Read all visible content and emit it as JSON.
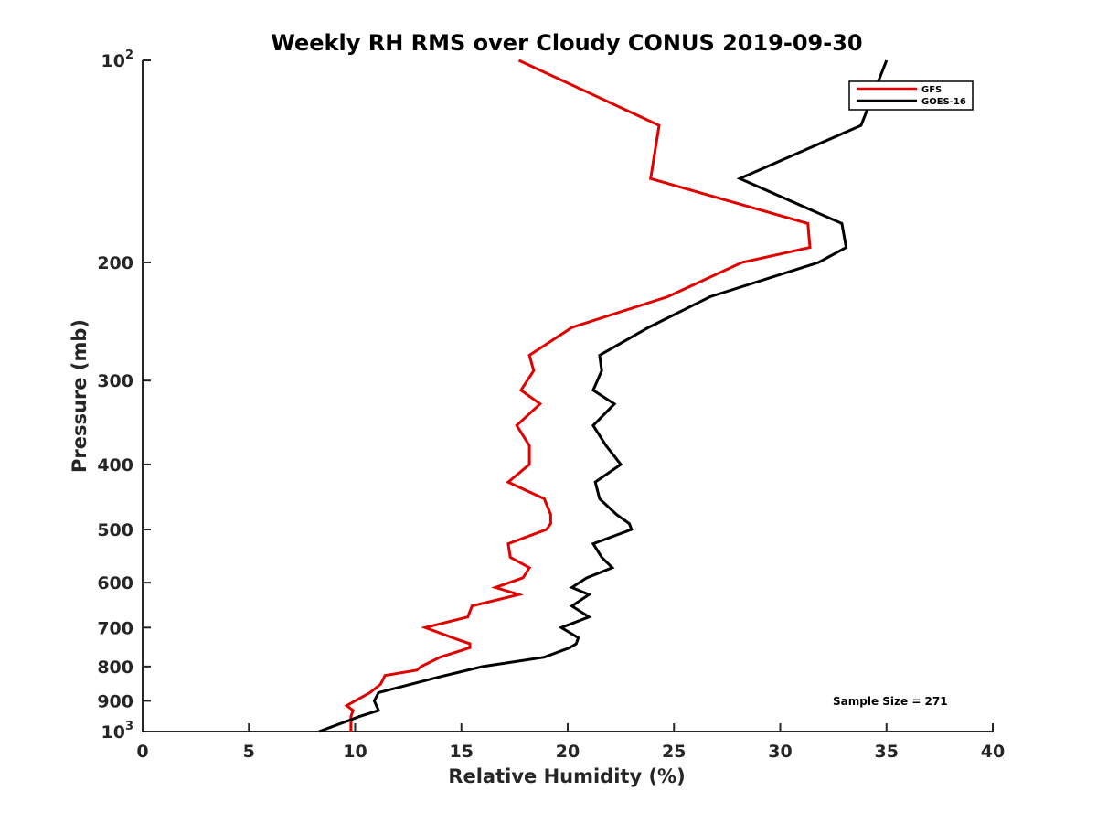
{
  "chart_data": {
    "type": "line",
    "title": "Weekly RH RMS over Cloudy CONUS 2019-09-30",
    "xlabel": "Relative Humidity (%)",
    "ylabel": "Pressure (mb)",
    "xlim": [
      0,
      40
    ],
    "ylim": [
      100,
      1000
    ],
    "y_scale": "log",
    "y_reversed": true,
    "grid": false,
    "legend_position": "top-right",
    "x_ticks": [
      "0",
      "5",
      "10",
      "15",
      "20",
      "25",
      "30",
      "35",
      "40"
    ],
    "y_ticks": [
      {
        "value": 100,
        "base": "10",
        "exp": "2"
      },
      {
        "value": 200,
        "label": "200"
      },
      {
        "value": 300,
        "label": "300"
      },
      {
        "value": 400,
        "label": "400"
      },
      {
        "value": 500,
        "label": "500"
      },
      {
        "value": 600,
        "label": "600"
      },
      {
        "value": 700,
        "label": "700"
      },
      {
        "value": 800,
        "label": "800"
      },
      {
        "value": 900,
        "label": "900"
      },
      {
        "value": 1000,
        "base": "10",
        "exp": "3"
      }
    ],
    "series": [
      {
        "name": "GFS",
        "color": "#e00000",
        "points": [
          [
            17.7,
            100
          ],
          [
            24.3,
            125
          ],
          [
            23.9,
            150
          ],
          [
            31.3,
            175
          ],
          [
            31.4,
            190
          ],
          [
            28.2,
            200
          ],
          [
            24.7,
            225
          ],
          [
            20.2,
            250
          ],
          [
            18.2,
            275
          ],
          [
            18.4,
            290
          ],
          [
            17.8,
            310
          ],
          [
            18.7,
            325
          ],
          [
            17.6,
            350
          ],
          [
            18.2,
            375
          ],
          [
            18.2,
            400
          ],
          [
            17.2,
            425
          ],
          [
            18.9,
            450
          ],
          [
            19.2,
            475
          ],
          [
            19.2,
            490
          ],
          [
            19.0,
            500
          ],
          [
            17.2,
            525
          ],
          [
            17.3,
            550
          ],
          [
            18.2,
            570
          ],
          [
            17.9,
            590
          ],
          [
            16.6,
            610
          ],
          [
            17.7,
            625
          ],
          [
            15.5,
            650
          ],
          [
            15.3,
            675
          ],
          [
            13.3,
            700
          ],
          [
            14.6,
            725
          ],
          [
            15.4,
            740
          ],
          [
            15.4,
            750
          ],
          [
            14.0,
            775
          ],
          [
            13.1,
            800
          ],
          [
            12.9,
            810
          ],
          [
            11.4,
            825
          ],
          [
            11.2,
            850
          ],
          [
            10.7,
            875
          ],
          [
            10.0,
            900
          ],
          [
            9.6,
            915
          ],
          [
            9.9,
            930
          ],
          [
            9.8,
            950
          ],
          [
            9.8,
            1000
          ]
        ]
      },
      {
        "name": "GOES-16",
        "color": "#000000",
        "points": [
          [
            35.0,
            100
          ],
          [
            33.8,
            125
          ],
          [
            28.1,
            150
          ],
          [
            32.9,
            175
          ],
          [
            33.1,
            190
          ],
          [
            31.8,
            200
          ],
          [
            26.7,
            225
          ],
          [
            23.8,
            250
          ],
          [
            21.5,
            275
          ],
          [
            21.6,
            290
          ],
          [
            21.2,
            310
          ],
          [
            22.2,
            325
          ],
          [
            21.2,
            350
          ],
          [
            21.8,
            375
          ],
          [
            22.5,
            400
          ],
          [
            21.3,
            425
          ],
          [
            21.5,
            450
          ],
          [
            22.3,
            475
          ],
          [
            22.9,
            490
          ],
          [
            23.0,
            500
          ],
          [
            21.2,
            525
          ],
          [
            21.6,
            550
          ],
          [
            22.1,
            570
          ],
          [
            20.9,
            590
          ],
          [
            20.2,
            610
          ],
          [
            21.0,
            625
          ],
          [
            20.2,
            650
          ],
          [
            21.0,
            675
          ],
          [
            19.7,
            700
          ],
          [
            20.5,
            725
          ],
          [
            20.4,
            740
          ],
          [
            20.1,
            750
          ],
          [
            18.9,
            775
          ],
          [
            16.0,
            800
          ],
          [
            13.9,
            830
          ],
          [
            11.1,
            875
          ],
          [
            10.9,
            900
          ],
          [
            11.1,
            930
          ],
          [
            10.2,
            950
          ],
          [
            8.3,
            1000
          ]
        ]
      }
    ],
    "annotations": [
      "Sample Size = 271"
    ]
  }
}
